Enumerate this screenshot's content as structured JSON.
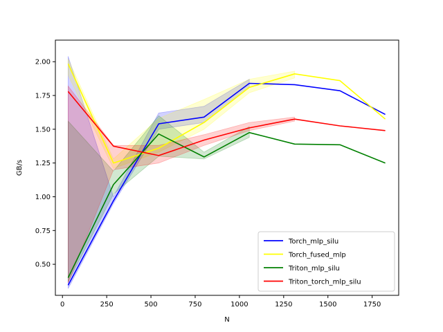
{
  "chart_data": {
    "type": "line",
    "title": "",
    "xlabel": "N",
    "ylabel": "GB/s",
    "xlim": [
      -40,
      1900
    ],
    "ylim": [
      0.27,
      2.16
    ],
    "xticks": [
      0,
      250,
      500,
      750,
      1000,
      1250,
      1500,
      1750
    ],
    "yticks": [
      0.5,
      0.75,
      1.0,
      1.25,
      1.5,
      1.75,
      2.0
    ],
    "xtick_labels": [
      "0",
      "250",
      "500",
      "750",
      "1000",
      "1250",
      "1500",
      "1750"
    ],
    "ytick_labels": [
      "0.50",
      "0.75",
      "1.00",
      "1.25",
      "1.50",
      "1.75",
      "2.00"
    ],
    "grid": false,
    "legend_position": "lower-right",
    "x": [
      32,
      288,
      544,
      800,
      1056,
      1312,
      1568,
      1824
    ],
    "series": [
      {
        "name": "Torch_mlp_silu",
        "color": "#0000ff",
        "values": [
          0.345,
          0.97,
          1.54,
          1.59,
          1.84,
          1.83,
          1.785,
          1.61
        ],
        "band": {
          "x": [
            32,
            288,
            544,
            800,
            1056
          ],
          "lower": [
            0.32,
            0.95,
            1.5,
            1.55,
            1.81
          ],
          "upper": [
            2.04,
            1.0,
            1.62,
            1.67,
            1.87
          ]
        }
      },
      {
        "name": "Torch_fused_mlp",
        "color": "#ffff00",
        "values": [
          1.985,
          1.25,
          1.36,
          1.55,
          1.81,
          1.91,
          1.86,
          1.575
        ],
        "band": {
          "x": [
            32,
            288,
            544,
            800,
            1056,
            1312
          ],
          "lower": [
            1.9,
            1.21,
            1.33,
            1.5,
            1.77,
            1.88
          ],
          "upper": [
            2.02,
            1.28,
            1.58,
            1.72,
            1.87,
            1.93
          ]
        }
      },
      {
        "name": "Triton_mlp_silu",
        "color": "#008000",
        "values": [
          0.4,
          1.09,
          1.465,
          1.295,
          1.475,
          1.39,
          1.385,
          1.25
        ],
        "band": {
          "x": [
            32,
            288,
            544,
            800,
            1056
          ],
          "lower": [
            0.37,
            1.02,
            1.3,
            1.28,
            1.44
          ],
          "upper": [
            1.56,
            1.19,
            1.6,
            1.33,
            1.52
          ]
        }
      },
      {
        "name": "Triton_torch_mlp_silu",
        "color": "#ff0000",
        "values": [
          1.78,
          1.375,
          1.305,
          1.42,
          1.51,
          1.575,
          1.525,
          1.49
        ],
        "band": {
          "x": [
            32,
            288,
            544,
            800,
            1056,
            1312
          ],
          "lower": [
            0.36,
            1.2,
            1.25,
            1.38,
            1.49,
            1.56
          ],
          "upper": [
            1.82,
            1.38,
            1.38,
            1.46,
            1.55,
            1.59
          ]
        }
      }
    ]
  }
}
